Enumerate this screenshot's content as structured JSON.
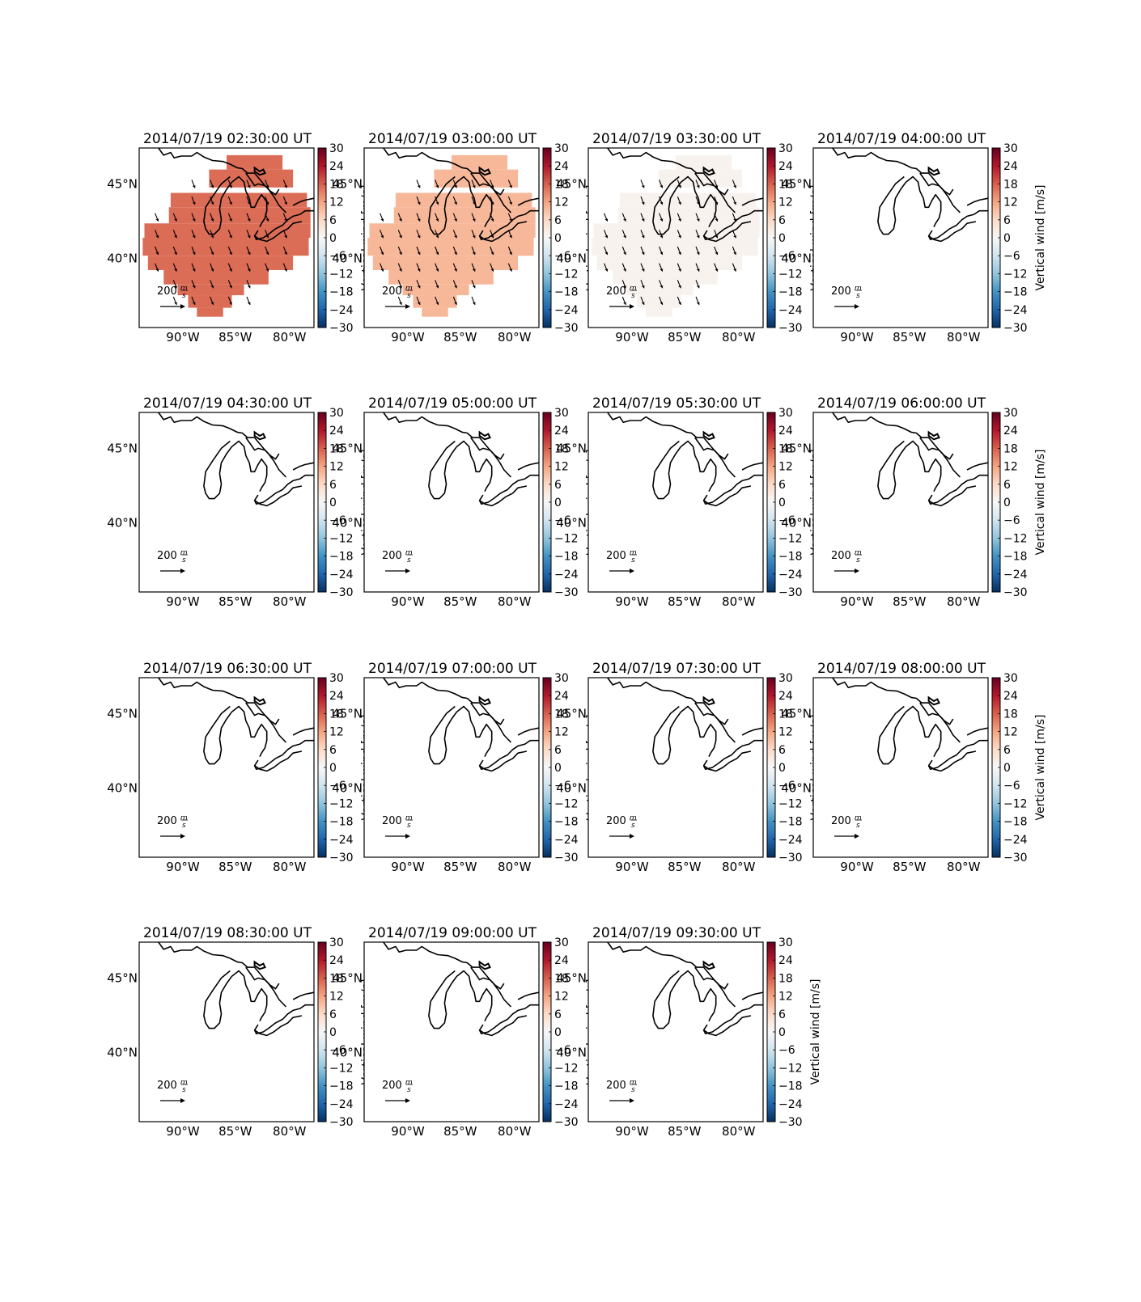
{
  "figure": {
    "colorbar_label": "Vertical wind [m/s]",
    "colorbar_ticks": [
      "30",
      "24",
      "18",
      "12",
      "6",
      "0",
      "−6",
      "−12",
      "−18",
      "−24",
      "−30"
    ],
    "lon_ticks": [
      "90°W",
      "85°W",
      "80°W"
    ],
    "lat_ticks": [
      "45°N",
      "40°N"
    ],
    "quiver_key": {
      "value": "200",
      "numerator": "m",
      "denominator": "s"
    },
    "colormap": [
      "#053061",
      "#2166ac",
      "#4393c3",
      "#92c5de",
      "#d1e5f0",
      "#f7f7f7",
      "#fddbc7",
      "#f4a582",
      "#d6604d",
      "#b2182b",
      "#67001f"
    ]
  },
  "chart_data": [
    {
      "type": "heatmap",
      "title": "2014/07/19 02:30:00 UT",
      "vertical_wind": 17,
      "wind_arrows": true,
      "colorbar_range": [
        -30,
        30
      ],
      "lon_range": [
        -94,
        -78
      ],
      "lat_range": [
        35,
        47
      ]
    },
    {
      "type": "heatmap",
      "title": "2014/07/19 03:00:00 UT",
      "vertical_wind": 10,
      "wind_arrows": true,
      "colorbar_range": [
        -30,
        30
      ],
      "lon_range": [
        -94,
        -78
      ],
      "lat_range": [
        35,
        47
      ]
    },
    {
      "type": "heatmap",
      "title": "2014/07/19 03:30:00 UT",
      "vertical_wind": 1,
      "wind_arrows": true,
      "colorbar_range": [
        -30,
        30
      ],
      "lon_range": [
        -94,
        -78
      ],
      "lat_range": [
        35,
        47
      ]
    },
    {
      "type": "heatmap",
      "title": "2014/07/19 04:00:00 UT",
      "vertical_wind": null,
      "wind_arrows": false,
      "colorbar_range": [
        -30,
        30
      ],
      "lon_range": [
        -94,
        -78
      ],
      "lat_range": [
        35,
        47
      ]
    },
    {
      "type": "heatmap",
      "title": "2014/07/19 04:30:00 UT",
      "vertical_wind": null,
      "wind_arrows": false,
      "colorbar_range": [
        -30,
        30
      ],
      "lon_range": [
        -94,
        -78
      ],
      "lat_range": [
        35,
        47
      ]
    },
    {
      "type": "heatmap",
      "title": "2014/07/19 05:00:00 UT",
      "vertical_wind": null,
      "wind_arrows": false,
      "colorbar_range": [
        -30,
        30
      ],
      "lon_range": [
        -94,
        -78
      ],
      "lat_range": [
        35,
        47
      ]
    },
    {
      "type": "heatmap",
      "title": "2014/07/19 05:30:00 UT",
      "vertical_wind": null,
      "wind_arrows": false,
      "colorbar_range": [
        -30,
        30
      ],
      "lon_range": [
        -94,
        -78
      ],
      "lat_range": [
        35,
        47
      ]
    },
    {
      "type": "heatmap",
      "title": "2014/07/19 06:00:00 UT",
      "vertical_wind": null,
      "wind_arrows": false,
      "colorbar_range": [
        -30,
        30
      ],
      "lon_range": [
        -94,
        -78
      ],
      "lat_range": [
        35,
        47
      ]
    },
    {
      "type": "heatmap",
      "title": "2014/07/19 06:30:00 UT",
      "vertical_wind": null,
      "wind_arrows": false,
      "colorbar_range": [
        -30,
        30
      ],
      "lon_range": [
        -94,
        -78
      ],
      "lat_range": [
        35,
        47
      ]
    },
    {
      "type": "heatmap",
      "title": "2014/07/19 07:00:00 UT",
      "vertical_wind": null,
      "wind_arrows": false,
      "colorbar_range": [
        -30,
        30
      ],
      "lon_range": [
        -94,
        -78
      ],
      "lat_range": [
        35,
        47
      ]
    },
    {
      "type": "heatmap",
      "title": "2014/07/19 07:30:00 UT",
      "vertical_wind": null,
      "wind_arrows": false,
      "colorbar_range": [
        -30,
        30
      ],
      "lon_range": [
        -94,
        -78
      ],
      "lat_range": [
        35,
        47
      ]
    },
    {
      "type": "heatmap",
      "title": "2014/07/19 08:00:00 UT",
      "vertical_wind": null,
      "wind_arrows": false,
      "colorbar_range": [
        -30,
        30
      ],
      "lon_range": [
        -94,
        -78
      ],
      "lat_range": [
        35,
        47
      ]
    },
    {
      "type": "heatmap",
      "title": "2014/07/19 08:30:00 UT",
      "vertical_wind": null,
      "wind_arrows": false,
      "colorbar_range": [
        -30,
        30
      ],
      "lon_range": [
        -94,
        -78
      ],
      "lat_range": [
        35,
        47
      ]
    },
    {
      "type": "heatmap",
      "title": "2014/07/19 09:00:00 UT",
      "vertical_wind": null,
      "wind_arrows": false,
      "colorbar_range": [
        -30,
        30
      ],
      "lon_range": [
        -94,
        -78
      ],
      "lat_range": [
        35,
        47
      ]
    },
    {
      "type": "heatmap",
      "title": "2014/07/19 09:30:00 UT",
      "vertical_wind": null,
      "wind_arrows": false,
      "colorbar_range": [
        -30,
        30
      ],
      "lon_range": [
        -94,
        -78
      ],
      "lat_range": [
        35,
        47
      ]
    }
  ]
}
